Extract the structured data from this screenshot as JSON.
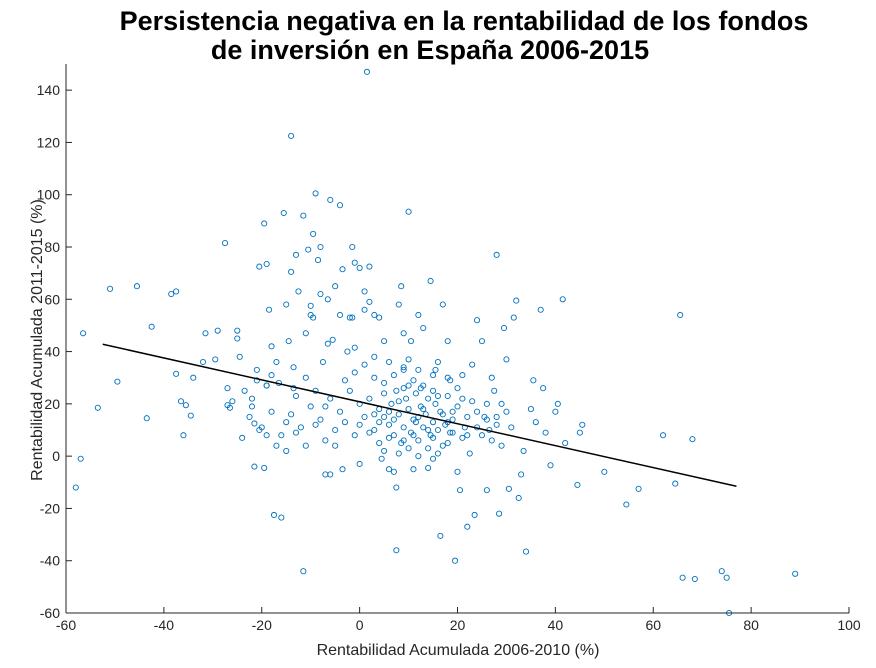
{
  "chart_data": {
    "type": "scatter",
    "title": [
      "Persistencia negativa en la rentabilidad de los fondos",
      "de inversión en España 2006-2015"
    ],
    "xlabel": "Rentabilidad Acumulada 2006-2010 (%)",
    "ylabel": "Rentabilidad Acumulada 2011-2015 (%)",
    "xlim": [
      -60,
      100
    ],
    "ylim": [
      -60,
      150
    ],
    "xticks": [
      "-60",
      "-40",
      "-20",
      "0",
      "20",
      "40",
      "60",
      "80",
      "100"
    ],
    "yticks": [
      "-60",
      "-40",
      "-20",
      "0",
      "20",
      "40",
      "60",
      "80",
      "100",
      "120",
      "140"
    ],
    "grid": false,
    "colors": {
      "points": "#0072BD",
      "regression": "#000000",
      "axes": "#262626"
    },
    "regression_line": {
      "x": [
        -52.5,
        77
      ],
      "y": [
        42.8,
        -11.5
      ]
    },
    "series": [
      {
        "marker": "open-circle",
        "points": [
          [
            -58,
            -12
          ],
          [
            -57,
            -1
          ],
          [
            -56.5,
            47
          ],
          [
            -53.5,
            18.5
          ],
          [
            -51,
            64
          ],
          [
            -49.5,
            28.5
          ],
          [
            -45.5,
            65
          ],
          [
            -43.5,
            14.5
          ],
          [
            -42.5,
            49.5
          ],
          [
            -38.5,
            62
          ],
          [
            -37.5,
            63
          ],
          [
            -37.5,
            31.5
          ],
          [
            -36.5,
            21
          ],
          [
            -36,
            8
          ],
          [
            -35.5,
            19.5
          ],
          [
            -34.5,
            15.5
          ],
          [
            -34,
            30
          ],
          [
            -32,
            36
          ],
          [
            -31.5,
            47
          ],
          [
            -29.5,
            37
          ],
          [
            -29,
            48
          ],
          [
            -27.5,
            81.5
          ],
          [
            -27,
            26
          ],
          [
            -27,
            19.5
          ],
          [
            -26.5,
            18.5
          ],
          [
            -25,
            45
          ],
          [
            -25,
            48
          ],
          [
            -24.5,
            38
          ],
          [
            -23.5,
            25
          ],
          [
            -22.5,
            15
          ],
          [
            -22,
            22
          ],
          [
            -21.5,
            12.5
          ],
          [
            -21.5,
            -4
          ],
          [
            -21,
            33
          ],
          [
            -20.5,
            72.5
          ],
          [
            -20.5,
            10
          ],
          [
            -19.5,
            89
          ],
          [
            -19.5,
            -4.5
          ],
          [
            -19,
            73.5
          ],
          [
            -19,
            27
          ],
          [
            -18.5,
            56
          ],
          [
            -18,
            42
          ],
          [
            -18,
            31
          ],
          [
            -17.5,
            -22.5
          ],
          [
            -16.5,
            28
          ],
          [
            -16,
            -23.5
          ],
          [
            -15.5,
            93
          ],
          [
            -15,
            58
          ],
          [
            -14.5,
            44
          ],
          [
            -14,
            70.5
          ],
          [
            -14,
            122.5
          ],
          [
            -13.5,
            34
          ],
          [
            -13.5,
            26
          ],
          [
            -13,
            77
          ],
          [
            -12.5,
            63
          ],
          [
            -11.5,
            92
          ],
          [
            -11.5,
            -44
          ],
          [
            -11,
            47
          ],
          [
            -10.5,
            79
          ],
          [
            -10,
            57.5
          ],
          [
            -10,
            54
          ],
          [
            -9.5,
            85
          ],
          [
            -9.5,
            53
          ],
          [
            -9,
            100.5
          ],
          [
            -8.5,
            75
          ],
          [
            -8,
            80
          ],
          [
            -8,
            62
          ],
          [
            -7.5,
            36
          ],
          [
            -7,
            -7
          ],
          [
            -6.5,
            60
          ],
          [
            -6.5,
            43
          ],
          [
            -6,
            98
          ],
          [
            -6,
            -7
          ],
          [
            -5.5,
            44.5
          ],
          [
            -5,
            65
          ],
          [
            -4,
            96
          ],
          [
            -4,
            54
          ],
          [
            -3.5,
            71.5
          ],
          [
            -3.5,
            -5
          ],
          [
            -2.5,
            40
          ],
          [
            -2,
            53
          ],
          [
            -1.5,
            80
          ],
          [
            -1.5,
            53
          ],
          [
            -1,
            74
          ],
          [
            -1,
            41.5
          ],
          [
            0,
            72
          ],
          [
            0,
            -3
          ],
          [
            1,
            63
          ],
          [
            1,
            56
          ],
          [
            1.5,
            147
          ],
          [
            2,
            72.5
          ],
          [
            2,
            59
          ],
          [
            3,
            54
          ],
          [
            4,
            53
          ],
          [
            4.5,
            -1
          ],
          [
            5,
            44
          ],
          [
            6,
            -5
          ],
          [
            7,
            -6
          ],
          [
            7.5,
            -12
          ],
          [
            7.5,
            -36
          ],
          [
            8,
            58
          ],
          [
            8.5,
            65
          ],
          [
            9,
            47
          ],
          [
            9,
            33
          ],
          [
            10,
            93.5
          ],
          [
            10,
            37
          ],
          [
            10.5,
            44
          ],
          [
            11,
            -5
          ],
          [
            11.5,
            13
          ],
          [
            12,
            54
          ],
          [
            12.5,
            26
          ],
          [
            13,
            49
          ],
          [
            14,
            -4.5
          ],
          [
            14.5,
            67
          ],
          [
            15,
            -1
          ],
          [
            15.5,
            33
          ],
          [
            16,
            36
          ],
          [
            16.5,
            -30.5
          ],
          [
            17,
            58
          ],
          [
            18,
            44
          ],
          [
            18.5,
            29
          ],
          [
            19,
            17
          ],
          [
            19.5,
            -40
          ],
          [
            20,
            -6
          ],
          [
            20.5,
            -13
          ],
          [
            21,
            31
          ],
          [
            21.5,
            11
          ],
          [
            22,
            -27
          ],
          [
            22.5,
            1
          ],
          [
            23,
            35
          ],
          [
            23.5,
            -22.5
          ],
          [
            24,
            52
          ],
          [
            25,
            44
          ],
          [
            25.5,
            15
          ],
          [
            26,
            -13
          ],
          [
            26.5,
            10
          ],
          [
            27,
            30
          ],
          [
            27.5,
            25
          ],
          [
            28,
            77
          ],
          [
            28.5,
            -22
          ],
          [
            29,
            20
          ],
          [
            29.5,
            49
          ],
          [
            30,
            37
          ],
          [
            30.5,
            -12.5
          ],
          [
            31,
            11
          ],
          [
            31.5,
            53
          ],
          [
            32,
            59.5
          ],
          [
            32.5,
            -16
          ],
          [
            33,
            -7
          ],
          [
            33.5,
            2
          ],
          [
            34,
            -36.5
          ],
          [
            35,
            18
          ],
          [
            35.5,
            29
          ],
          [
            36,
            13
          ],
          [
            37,
            56
          ],
          [
            37.5,
            26
          ],
          [
            38,
            9
          ],
          [
            39,
            -3.5
          ],
          [
            40,
            17
          ],
          [
            40.5,
            20
          ],
          [
            41.5,
            60
          ],
          [
            42,
            5
          ],
          [
            44.5,
            -11
          ],
          [
            45,
            9
          ],
          [
            45.5,
            12
          ],
          [
            50,
            -6
          ],
          [
            54.5,
            -18.5
          ],
          [
            57,
            -12.5
          ],
          [
            62,
            8
          ],
          [
            64.5,
            -10.5
          ],
          [
            65.5,
            54
          ],
          [
            66,
            -46.5
          ],
          [
            68,
            6.5
          ],
          [
            68.5,
            -47
          ],
          [
            74,
            -44
          ],
          [
            75,
            -46.5
          ],
          [
            75.5,
            -60
          ],
          [
            89,
            -45
          ],
          [
            -2,
            25
          ],
          [
            0,
            20
          ],
          [
            2,
            22
          ],
          [
            4,
            18
          ],
          [
            5,
            15
          ],
          [
            6,
            12
          ],
          [
            6.5,
            20
          ],
          [
            7,
            8
          ],
          [
            7.5,
            25
          ],
          [
            8,
            16
          ],
          [
            8.5,
            5
          ],
          [
            9,
            11
          ],
          [
            9.5,
            22
          ],
          [
            10,
            18
          ],
          [
            10.5,
            9
          ],
          [
            11,
            14
          ],
          [
            11.5,
            24
          ],
          [
            12,
            6
          ],
          [
            12.5,
            19
          ],
          [
            13,
            11
          ],
          [
            13.5,
            16
          ],
          [
            14,
            22
          ],
          [
            14.5,
            8
          ],
          [
            15,
            13
          ],
          [
            15.5,
            20
          ],
          [
            16,
            10
          ],
          [
            16.5,
            17
          ],
          [
            17,
            4
          ],
          [
            17.5,
            12
          ],
          [
            18,
            23
          ],
          [
            18.5,
            9
          ],
          [
            19,
            14
          ],
          [
            20,
            19
          ],
          [
            21,
            7
          ],
          [
            22,
            15
          ],
          [
            23,
            21
          ],
          [
            24,
            11
          ],
          [
            25,
            8
          ],
          [
            26,
            14
          ],
          [
            27,
            6
          ],
          [
            28,
            12
          ],
          [
            29,
            4
          ],
          [
            -4,
            17
          ],
          [
            -6,
            22
          ],
          [
            -8,
            14
          ],
          [
            -10,
            19
          ],
          [
            -12,
            11
          ],
          [
            -14,
            16
          ],
          [
            -16,
            8
          ],
          [
            -3,
            29
          ],
          [
            -1,
            32
          ],
          [
            1,
            35
          ],
          [
            3,
            30
          ],
          [
            5,
            28
          ],
          [
            7,
            31
          ],
          [
            9,
            26
          ],
          [
            11,
            29
          ],
          [
            13,
            27
          ],
          [
            15,
            25
          ],
          [
            -5,
            10
          ],
          [
            -7,
            6
          ],
          [
            -9,
            12
          ],
          [
            -11,
            4
          ],
          [
            -13,
            9
          ],
          [
            -15,
            2
          ],
          [
            3,
            10
          ],
          [
            4,
            5
          ],
          [
            5,
            2
          ],
          [
            6,
            7
          ],
          [
            8,
            1
          ],
          [
            10,
            3
          ],
          [
            12,
            0
          ],
          [
            14,
            3
          ],
          [
            16,
            1
          ],
          [
            18,
            5
          ],
          [
            3,
            38
          ],
          [
            6,
            36
          ],
          [
            9,
            34
          ],
          [
            12,
            33
          ],
          [
            15,
            31
          ],
          [
            18,
            30
          ],
          [
            -18,
            17
          ],
          [
            -20,
            11
          ],
          [
            -22,
            19
          ],
          [
            -24,
            7
          ],
          [
            -26,
            21
          ],
          [
            -17,
            36
          ],
          [
            -19,
            27
          ],
          [
            -21,
            29
          ],
          [
            0,
            12
          ],
          [
            1,
            15
          ],
          [
            2,
            9
          ],
          [
            3,
            16
          ],
          [
            4,
            13
          ],
          [
            5,
            24
          ],
          [
            6,
            17
          ],
          [
            7,
            14
          ],
          [
            8,
            21
          ],
          [
            9,
            6
          ],
          [
            10,
            27
          ],
          [
            11,
            8
          ],
          [
            12,
            15
          ],
          [
            13,
            18
          ],
          [
            14,
            10
          ],
          [
            15,
            7
          ],
          [
            16,
            23
          ],
          [
            17,
            16
          ],
          [
            18,
            13
          ],
          [
            19,
            9
          ],
          [
            20,
            26
          ],
          [
            21,
            22
          ],
          [
            22,
            8
          ],
          [
            24,
            17
          ],
          [
            26,
            20
          ],
          [
            28,
            15
          ],
          [
            30,
            17
          ],
          [
            -1,
            8
          ],
          [
            -3,
            13
          ],
          [
            -5,
            4
          ],
          [
            -7,
            19
          ],
          [
            -9,
            25
          ],
          [
            -11,
            30
          ],
          [
            -13,
            23
          ],
          [
            -15,
            13
          ],
          [
            -17,
            4
          ],
          [
            -19,
            8
          ]
        ]
      }
    ]
  }
}
